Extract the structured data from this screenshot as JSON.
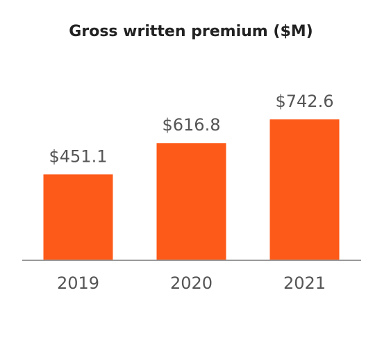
{
  "chart_data": {
    "type": "bar",
    "title": "Gross written premium ($M)",
    "categories": [
      "2019",
      "2020",
      "2021"
    ],
    "values": [
      451.1,
      616.8,
      742.6
    ],
    "value_labels": [
      "$451.1",
      "$616.8",
      "$742.6"
    ],
    "color": "#fd5a19"
  }
}
